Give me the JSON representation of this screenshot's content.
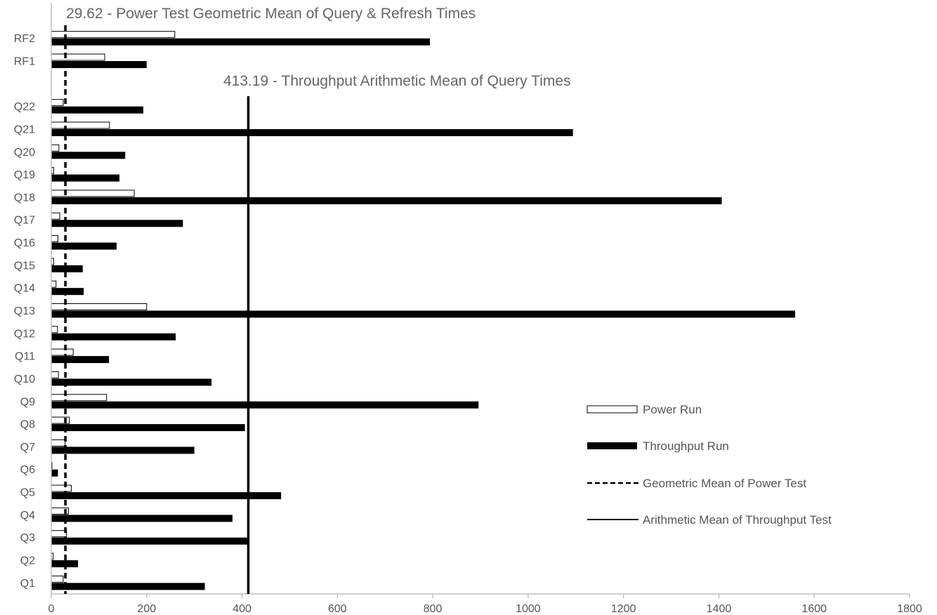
{
  "chart_data": {
    "type": "bar",
    "orientation": "horizontal",
    "categories": [
      "Q1",
      "Q2",
      "Q3",
      "Q4",
      "Q5",
      "Q6",
      "Q7",
      "Q8",
      "Q9",
      "Q10",
      "Q11",
      "Q12",
      "Q13",
      "Q14",
      "Q15",
      "Q16",
      "Q17",
      "Q18",
      "Q19",
      "Q20",
      "Q21",
      "Q22",
      "",
      "RF1",
      "RF2"
    ],
    "series": [
      {
        "name": "Power Run",
        "style": "outline",
        "values": [
          25,
          4,
          32,
          36,
          42,
          1,
          29,
          38,
          116,
          15,
          46,
          13,
          200,
          10,
          5,
          14,
          18,
          174,
          5,
          16,
          122,
          25,
          null,
          112,
          259
        ]
      },
      {
        "name": "Throughput Run",
        "style": "filled",
        "values": [
          322,
          56,
          411,
          380,
          482,
          14,
          300,
          406,
          896,
          336,
          121,
          261,
          1560,
          68,
          66,
          137,
          276,
          1406,
          143,
          155,
          1094,
          193,
          null,
          200,
          794
        ]
      }
    ],
    "reference_lines": [
      {
        "name": "Geometric Mean of Power Test",
        "value": 29.62,
        "style": "dashed",
        "label": "29.62 - Power Test Geometric Mean of Query & Refresh Times"
      },
      {
        "name": "Arithmetic Mean of Throughput Test",
        "value": 413.19,
        "style": "solid",
        "label": "413.19 - Throughput Arithmetic Mean of Query Times"
      }
    ],
    "xlim": [
      0,
      1800
    ],
    "xticks": [
      "0",
      "200",
      "400",
      "600",
      "800",
      "1000",
      "1200",
      "1400",
      "1600",
      "1800"
    ],
    "title": "",
    "xlabel": "",
    "ylabel": "",
    "grid": false,
    "legend_position": "right",
    "colors": {
      "throughput": "#000000",
      "power_fill": "#ffffff",
      "power_stroke": "#000000",
      "axis": "#bfbfbf",
      "text": "#555555"
    }
  }
}
